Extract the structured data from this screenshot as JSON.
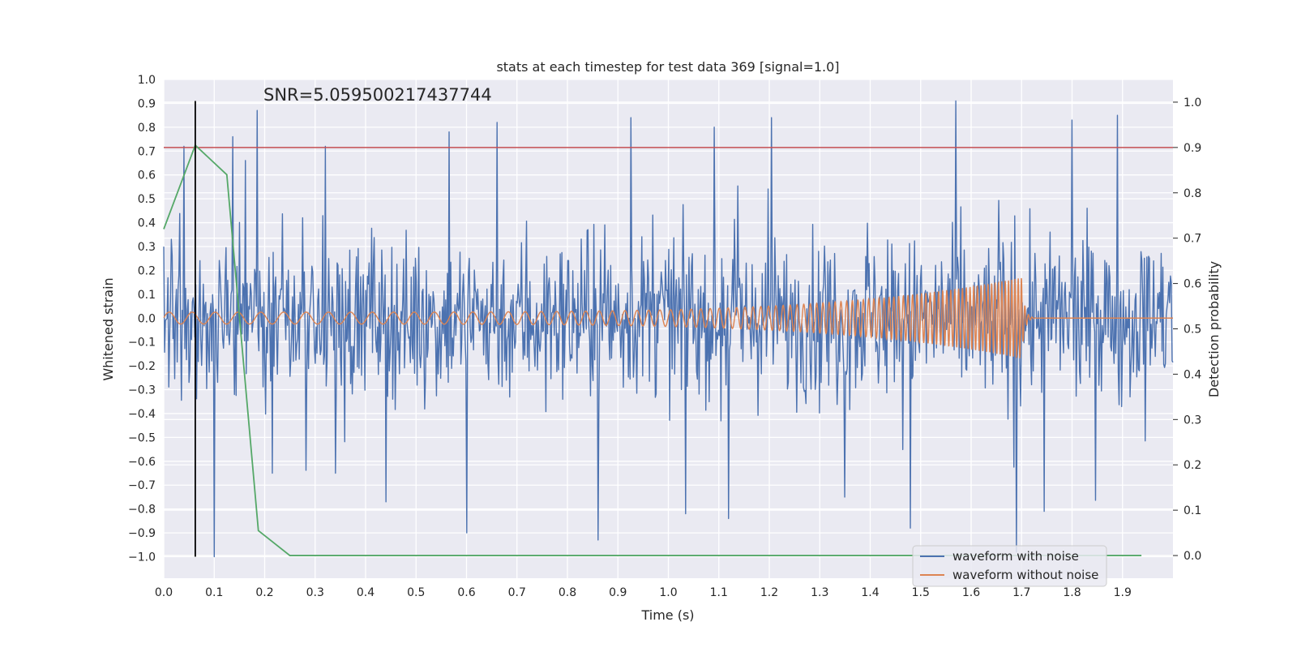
{
  "chart_data": {
    "type": "line",
    "title": "stats at each timestep for test data 369 [signal=1.0]",
    "xlabel": "Time (s)",
    "ylabel": "Whitened strain",
    "ylabel_right": "Detection probability",
    "annotation": "SNR=5.059500217437744",
    "xlim": [
      0.0,
      2.0
    ],
    "ylim": [
      -1.09,
      1.0
    ],
    "ylim_right": [
      -0.05,
      1.05
    ],
    "xticks": [
      "0.0",
      "0.1",
      "0.2",
      "0.3",
      "0.4",
      "0.5",
      "0.6",
      "0.7",
      "0.8",
      "0.9",
      "1.0",
      "1.1",
      "1.2",
      "1.3",
      "1.4",
      "1.5",
      "1.6",
      "1.7",
      "1.8",
      "1.9"
    ],
    "yticks": [
      "1.0",
      "0.9",
      "0.8",
      "0.7",
      "0.6",
      "0.5",
      "0.4",
      "0.3",
      "0.2",
      "0.1",
      "0.0",
      "-0.1",
      "-0.2",
      "-0.3",
      "-0.4",
      "-0.5",
      "-0.6",
      "-0.7",
      "-0.8",
      "-0.9",
      "-1.0"
    ],
    "yticks_right": [
      "1.0",
      "0.9",
      "0.8",
      "0.7",
      "0.6",
      "0.5",
      "0.4",
      "0.3",
      "0.2",
      "0.1",
      "0.0"
    ],
    "grid": true,
    "legend_position": "lower-right",
    "legend": [
      {
        "label": "waveform with noise",
        "color": "#4c72b0"
      },
      {
        "label": "waveform without noise",
        "color": "#dd8452"
      }
    ],
    "noise_series": {
      "color": "#4c72b0",
      "n_samples": 1200,
      "amplitude": 0.3,
      "spikes": [
        {
          "x": 0.04,
          "y": 0.72
        },
        {
          "x": 0.1,
          "y": -1.0
        },
        {
          "x": 0.137,
          "y": 0.76
        },
        {
          "x": 0.185,
          "y": 0.87
        },
        {
          "x": 0.215,
          "y": -0.65
        },
        {
          "x": 0.32,
          "y": 0.72
        },
        {
          "x": 0.34,
          "y": -0.65
        },
        {
          "x": 0.44,
          "y": -0.77
        },
        {
          "x": 0.565,
          "y": 0.78
        },
        {
          "x": 0.6,
          "y": -0.9
        },
        {
          "x": 0.66,
          "y": 0.82
        },
        {
          "x": 0.86,
          "y": -0.93
        },
        {
          "x": 0.925,
          "y": 0.84
        },
        {
          "x": 1.035,
          "y": -0.82
        },
        {
          "x": 1.12,
          "y": -0.84
        },
        {
          "x": 1.205,
          "y": 0.84
        },
        {
          "x": 1.35,
          "y": -0.75
        },
        {
          "x": 1.48,
          "y": -0.88
        },
        {
          "x": 1.57,
          "y": 0.91
        },
        {
          "x": 1.69,
          "y": -0.98
        },
        {
          "x": 1.745,
          "y": -0.81
        },
        {
          "x": 1.8,
          "y": 0.83
        },
        {
          "x": 1.89,
          "y": 0.85
        }
      ]
    },
    "clean_series": {
      "color": "#dd8452",
      "merger_time": 1.7,
      "end_time": 2.0,
      "amplitude_start": 0.025,
      "amplitude_peak": 0.17,
      "frequency_start_hz": 22,
      "frequency_end_hz": 160
    },
    "probability_series": {
      "color": "#55a868",
      "x": [
        0.0,
        0.0625,
        0.125,
        0.1875,
        0.25,
        0.5,
        1.0,
        1.5,
        1.9375
      ],
      "y": [
        0.72,
        0.905,
        0.84,
        0.055,
        0.0,
        0.0,
        0.0,
        0.0,
        0.0
      ]
    },
    "threshold": {
      "value": 0.9,
      "axis": "right",
      "color": "#c44e52"
    },
    "marker_line": {
      "x": 0.0625,
      "y_range": [
        -1.0,
        0.91
      ],
      "color": "#000000"
    }
  }
}
